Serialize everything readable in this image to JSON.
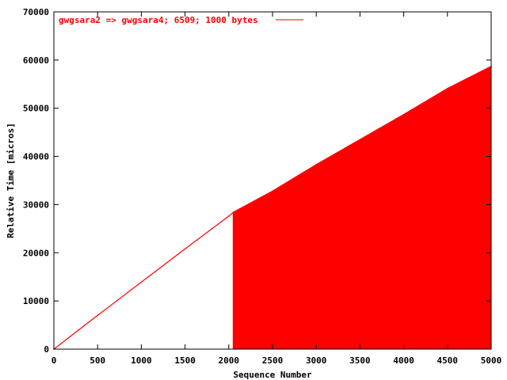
{
  "chart_data": {
    "type": "line",
    "title": "",
    "xlabel": "Sequence Number",
    "ylabel": "Relative Time [micros]",
    "xlim": [
      0,
      5000
    ],
    "ylim": [
      0,
      70000
    ],
    "x_ticks": [
      0,
      500,
      1000,
      1500,
      2000,
      2500,
      3000,
      3500,
      4000,
      4500,
      5000
    ],
    "y_ticks": [
      0,
      10000,
      20000,
      30000,
      40000,
      50000,
      60000,
      70000
    ],
    "grid": false,
    "legend_position": "top-left",
    "series": [
      {
        "name": "gwgsara2 => gwgsara4; 6509; 1000 bytes",
        "color": "#ff0000",
        "style": "impulses",
        "x": [
          0,
          500,
          1000,
          1500,
          2000,
          2050,
          2500,
          3000,
          3500,
          4000,
          4500,
          5000
        ],
        "y": [
          0,
          7000,
          13900,
          20800,
          27600,
          28400,
          32800,
          38300,
          43500,
          48700,
          54100,
          58700
        ],
        "filled_from_x": 2050
      }
    ]
  }
}
